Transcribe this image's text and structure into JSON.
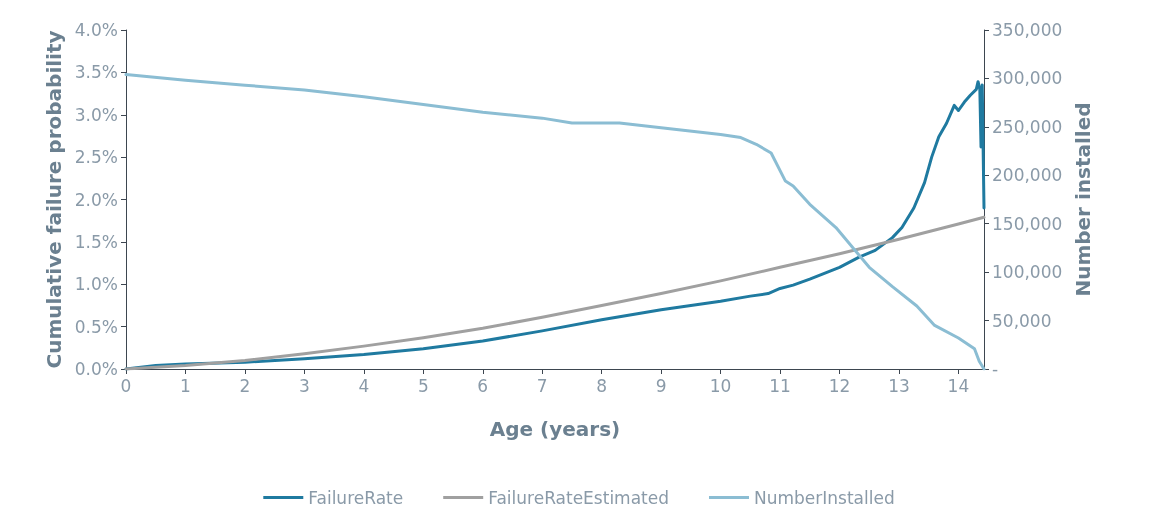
{
  "chart_data": {
    "type": "line",
    "xlabel": "Age (years)",
    "ylabel": "Cumulative failure probability",
    "y2label": "Number installed",
    "xlim": [
      0,
      14.43
    ],
    "xticks": [
      0,
      1,
      2,
      3,
      4,
      5,
      6,
      7,
      8,
      9,
      10,
      11,
      12,
      13,
      14
    ],
    "ylim": [
      0,
      4
    ],
    "yticks": [
      {
        "value": 0,
        "label": "0.0%"
      },
      {
        "value": 0.5,
        "label": "0.5%"
      },
      {
        "value": 1,
        "label": "1.0%"
      },
      {
        "value": 1.5,
        "label": "1.5%"
      },
      {
        "value": 2,
        "label": "2.0%"
      },
      {
        "value": 2.5,
        "label": "2.5%"
      },
      {
        "value": 3,
        "label": "3.0%"
      },
      {
        "value": 3.5,
        "label": "3.5%"
      },
      {
        "value": 4,
        "label": "4.0%"
      }
    ],
    "y2lim": [
      0,
      350000
    ],
    "y2ticks": [
      {
        "value": 0,
        "label": "-"
      },
      {
        "value": 50000,
        "label": "50,000"
      },
      {
        "value": 100000,
        "label": "100,000"
      },
      {
        "value": 150000,
        "label": "150,000"
      },
      {
        "value": 200000,
        "label": "200,000"
      },
      {
        "value": 250000,
        "label": "250,000"
      },
      {
        "value": 300000,
        "label": "300,000"
      },
      {
        "value": 350000,
        "label": "350,000"
      }
    ],
    "grid": false,
    "legend": "bottom",
    "marker": "none",
    "line_style": "solid",
    "series": [
      {
        "name": "FailureRate",
        "color": "#1f7aa0",
        "x": [
          0,
          0.5,
          1,
          2,
          3,
          4,
          5,
          6,
          7,
          8,
          9,
          10,
          10.5,
          10.8,
          11,
          11.22,
          11.5,
          12,
          12.33,
          12.6,
          12.89,
          13.05,
          13.25,
          13.43,
          13.55,
          13.67,
          13.8,
          13.93,
          14.0,
          14.1,
          14.2,
          14.3,
          14.33,
          14.36,
          14.38,
          14.4,
          14.43
        ],
        "values": [
          0,
          0.04,
          0.06,
          0.08,
          0.12,
          0.17,
          0.24,
          0.33,
          0.45,
          0.58,
          0.7,
          0.8,
          0.86,
          0.89,
          0.95,
          0.99,
          1.06,
          1.2,
          1.32,
          1.4,
          1.55,
          1.67,
          1.9,
          2.2,
          2.5,
          2.74,
          2.9,
          3.11,
          3.05,
          3.15,
          3.23,
          3.3,
          3.39,
          3.3,
          2.62,
          3.35,
          1.9
        ]
      },
      {
        "name": "FailureRateEstimated",
        "color": "#a0a0a0",
        "x": [
          0,
          1,
          2,
          3,
          4,
          5,
          6,
          7,
          8,
          9,
          10,
          11,
          12,
          13,
          14,
          14.43
        ],
        "values": [
          0,
          0.04,
          0.1,
          0.18,
          0.27,
          0.37,
          0.48,
          0.61,
          0.75,
          0.89,
          1.04,
          1.2,
          1.36,
          1.53,
          1.71,
          1.79
        ]
      },
      {
        "name": "NumberInstalled",
        "color": "#8bbdd3",
        "axis": "y2",
        "x": [
          0,
          1,
          2,
          3,
          4,
          5,
          6,
          7,
          7.5,
          8.3,
          9,
          10,
          10.34,
          10.6,
          10.85,
          11.09,
          11.22,
          11.5,
          11.94,
          12.5,
          12.89,
          13.3,
          13.6,
          14.0,
          14.27,
          14.35,
          14.43
        ],
        "values": [
          304000,
          298000,
          293000,
          288000,
          281000,
          273000,
          265000,
          259000,
          254000,
          254000,
          249000,
          242000,
          239000,
          232000,
          223000,
          194000,
          189000,
          170000,
          146000,
          105000,
          85000,
          65000,
          45000,
          32000,
          21000,
          8000,
          0
        ]
      }
    ]
  }
}
